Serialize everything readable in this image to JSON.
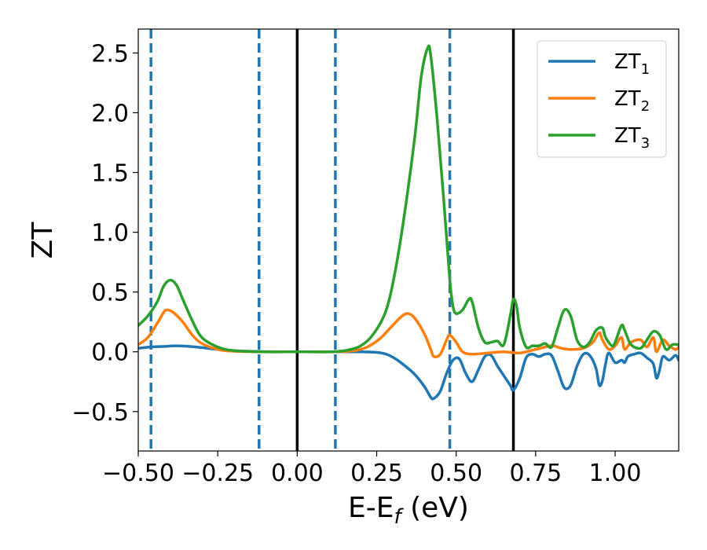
{
  "chart_data": {
    "type": "line",
    "title": "",
    "xlabel": "E-E",
    "xlabel_sub": "f",
    "xlabel_unit": " (eV)",
    "ylabel": "ZT",
    "xlim": [
      -0.5,
      1.2
    ],
    "ylim": [
      -0.83,
      2.7
    ],
    "grid": false,
    "legend": "top-right",
    "x_ticks": [
      -0.5,
      -0.25,
      0.0,
      0.25,
      0.5,
      0.75,
      1.0
    ],
    "x_tick_labels": [
      "−0.50",
      "−0.25",
      "0.00",
      "0.25",
      "0.50",
      "0.75",
      "1.00"
    ],
    "y_ticks": [
      -0.5,
      0.0,
      0.5,
      1.0,
      1.5,
      2.0,
      2.5
    ],
    "y_tick_labels": [
      "−0.5",
      "0.0",
      "0.5",
      "1.0",
      "1.5",
      "2.0",
      "2.5"
    ],
    "vlines": [
      {
        "x": -0.46,
        "style": "dashed",
        "color": "#1f77b4"
      },
      {
        "x": -0.12,
        "style": "dashed",
        "color": "#1f77b4"
      },
      {
        "x": 0.0,
        "style": "solid",
        "color": "#000000"
      },
      {
        "x": 0.12,
        "style": "dashed",
        "color": "#1f77b4"
      },
      {
        "x": 0.48,
        "style": "dashed",
        "color": "#1f77b4"
      },
      {
        "x": 0.68,
        "style": "solid",
        "color": "#000000"
      }
    ],
    "series": [
      {
        "name": "ZT",
        "sub": "1",
        "color": "#1f77b4",
        "points": [
          [
            -0.5,
            0.03
          ],
          [
            -0.46,
            0.04
          ],
          [
            -0.42,
            0.045
          ],
          [
            -0.38,
            0.05
          ],
          [
            -0.34,
            0.045
          ],
          [
            -0.3,
            0.035
          ],
          [
            -0.25,
            0.02
          ],
          [
            -0.2,
            0.01
          ],
          [
            -0.15,
            0.004
          ],
          [
            -0.1,
            0.001
          ],
          [
            0.0,
            0.0
          ],
          [
            0.1,
            0.0
          ],
          [
            0.15,
            0.0
          ],
          [
            0.2,
            0.0
          ],
          [
            0.25,
            -0.005
          ],
          [
            0.28,
            -0.02
          ],
          [
            0.31,
            -0.06
          ],
          [
            0.34,
            -0.12
          ],
          [
            0.37,
            -0.19
          ],
          [
            0.4,
            -0.29
          ],
          [
            0.42,
            -0.38
          ],
          [
            0.43,
            -0.39
          ],
          [
            0.45,
            -0.33
          ],
          [
            0.47,
            -0.18
          ],
          [
            0.49,
            -0.07
          ],
          [
            0.51,
            -0.06
          ],
          [
            0.53,
            -0.18
          ],
          [
            0.55,
            -0.25
          ],
          [
            0.57,
            -0.15
          ],
          [
            0.59,
            -0.04
          ],
          [
            0.61,
            -0.03
          ],
          [
            0.63,
            -0.12
          ],
          [
            0.65,
            -0.2
          ],
          [
            0.67,
            -0.28
          ],
          [
            0.68,
            -0.32
          ],
          [
            0.7,
            -0.22
          ],
          [
            0.72,
            -0.05
          ],
          [
            0.74,
            -0.02
          ],
          [
            0.76,
            -0.04
          ],
          [
            0.78,
            -0.02
          ],
          [
            0.8,
            -0.03
          ],
          [
            0.82,
            -0.16
          ],
          [
            0.84,
            -0.3
          ],
          [
            0.86,
            -0.28
          ],
          [
            0.88,
            -0.12
          ],
          [
            0.9,
            -0.02
          ],
          [
            0.92,
            -0.03
          ],
          [
            0.94,
            -0.14
          ],
          [
            0.95,
            -0.28
          ],
          [
            0.96,
            -0.24
          ],
          [
            0.97,
            -0.1
          ],
          [
            0.98,
            -0.01
          ],
          [
            1.0,
            -0.09
          ],
          [
            1.02,
            -0.07
          ],
          [
            1.03,
            -0.09
          ],
          [
            1.04,
            -0.04
          ],
          [
            1.06,
            -0.02
          ],
          [
            1.08,
            -0.01
          ],
          [
            1.1,
            -0.05
          ],
          [
            1.12,
            -0.1
          ],
          [
            1.13,
            -0.22
          ],
          [
            1.14,
            -0.15
          ],
          [
            1.15,
            -0.04
          ],
          [
            1.17,
            -0.07
          ],
          [
            1.19,
            -0.03
          ],
          [
            1.2,
            -0.07
          ]
        ]
      },
      {
        "name": "ZT",
        "sub": "2",
        "color": "#ff7f0e",
        "points": [
          [
            -0.5,
            0.06
          ],
          [
            -0.47,
            0.12
          ],
          [
            -0.44,
            0.24
          ],
          [
            -0.42,
            0.33
          ],
          [
            -0.41,
            0.35
          ],
          [
            -0.39,
            0.33
          ],
          [
            -0.36,
            0.25
          ],
          [
            -0.33,
            0.14
          ],
          [
            -0.3,
            0.07
          ],
          [
            -0.25,
            0.02
          ],
          [
            -0.2,
            0.005
          ],
          [
            -0.1,
            0.0
          ],
          [
            0.0,
            0.0
          ],
          [
            0.12,
            0.0
          ],
          [
            0.18,
            0.01
          ],
          [
            0.22,
            0.04
          ],
          [
            0.26,
            0.11
          ],
          [
            0.3,
            0.22
          ],
          [
            0.33,
            0.3
          ],
          [
            0.35,
            0.32
          ],
          [
            0.37,
            0.28
          ],
          [
            0.4,
            0.15
          ],
          [
            0.42,
            0.02
          ],
          [
            0.43,
            -0.04
          ],
          [
            0.45,
            -0.02
          ],
          [
            0.47,
            0.1
          ],
          [
            0.48,
            0.14
          ],
          [
            0.5,
            0.08
          ],
          [
            0.52,
            0.0
          ],
          [
            0.55,
            -0.02
          ],
          [
            0.6,
            -0.01
          ],
          [
            0.65,
            0.0
          ],
          [
            0.7,
            -0.01
          ],
          [
            0.75,
            0.02
          ],
          [
            0.8,
            0.05
          ],
          [
            0.83,
            0.03
          ],
          [
            0.86,
            0.02
          ],
          [
            0.9,
            0.03
          ],
          [
            0.93,
            0.08
          ],
          [
            0.95,
            0.16
          ],
          [
            0.96,
            0.1
          ],
          [
            0.98,
            0.02
          ],
          [
            1.0,
            0.05
          ],
          [
            1.02,
            0.12
          ],
          [
            1.03,
            0.02
          ],
          [
            1.05,
            0.08
          ],
          [
            1.08,
            0.1
          ],
          [
            1.1,
            0.04
          ],
          [
            1.12,
            0.12
          ],
          [
            1.13,
            0.0
          ],
          [
            1.15,
            0.1
          ],
          [
            1.17,
            0.05
          ],
          [
            1.19,
            0.02
          ],
          [
            1.2,
            0.04
          ]
        ]
      },
      {
        "name": "ZT",
        "sub": "3",
        "color": "#2ca02c",
        "points": [
          [
            -0.5,
            0.22
          ],
          [
            -0.47,
            0.3
          ],
          [
            -0.44,
            0.42
          ],
          [
            -0.42,
            0.55
          ],
          [
            -0.4,
            0.6
          ],
          [
            -0.38,
            0.56
          ],
          [
            -0.36,
            0.44
          ],
          [
            -0.33,
            0.26
          ],
          [
            -0.3,
            0.12
          ],
          [
            -0.25,
            0.04
          ],
          [
            -0.2,
            0.01
          ],
          [
            -0.1,
            0.0
          ],
          [
            0.0,
            0.0
          ],
          [
            0.1,
            0.0
          ],
          [
            0.15,
            0.01
          ],
          [
            0.2,
            0.05
          ],
          [
            0.24,
            0.15
          ],
          [
            0.28,
            0.35
          ],
          [
            0.31,
            0.7
          ],
          [
            0.34,
            1.2
          ],
          [
            0.37,
            1.8
          ],
          [
            0.39,
            2.3
          ],
          [
            0.41,
            2.54
          ],
          [
            0.42,
            2.48
          ],
          [
            0.44,
            1.95
          ],
          [
            0.46,
            1.3
          ],
          [
            0.48,
            0.6
          ],
          [
            0.49,
            0.38
          ],
          [
            0.5,
            0.32
          ],
          [
            0.52,
            0.35
          ],
          [
            0.54,
            0.44
          ],
          [
            0.55,
            0.42
          ],
          [
            0.57,
            0.2
          ],
          [
            0.59,
            0.08
          ],
          [
            0.61,
            0.08
          ],
          [
            0.63,
            0.09
          ],
          [
            0.65,
            0.06
          ],
          [
            0.67,
            0.3
          ],
          [
            0.68,
            0.44
          ],
          [
            0.69,
            0.38
          ],
          [
            0.7,
            0.2
          ],
          [
            0.72,
            0.04
          ],
          [
            0.74,
            0.05
          ],
          [
            0.76,
            0.05
          ],
          [
            0.78,
            0.07
          ],
          [
            0.8,
            0.04
          ],
          [
            0.82,
            0.2
          ],
          [
            0.84,
            0.35
          ],
          [
            0.86,
            0.3
          ],
          [
            0.88,
            0.1
          ],
          [
            0.9,
            0.04
          ],
          [
            0.92,
            0.08
          ],
          [
            0.94,
            0.18
          ],
          [
            0.96,
            0.2
          ],
          [
            0.97,
            0.12
          ],
          [
            0.99,
            0.05
          ],
          [
            1.0,
            0.08
          ],
          [
            1.02,
            0.22
          ],
          [
            1.03,
            0.18
          ],
          [
            1.05,
            0.06
          ],
          [
            1.08,
            0.03
          ],
          [
            1.1,
            0.1
          ],
          [
            1.12,
            0.17
          ],
          [
            1.14,
            0.14
          ],
          [
            1.16,
            0.02
          ],
          [
            1.18,
            0.06
          ],
          [
            1.2,
            0.06
          ]
        ]
      }
    ]
  }
}
